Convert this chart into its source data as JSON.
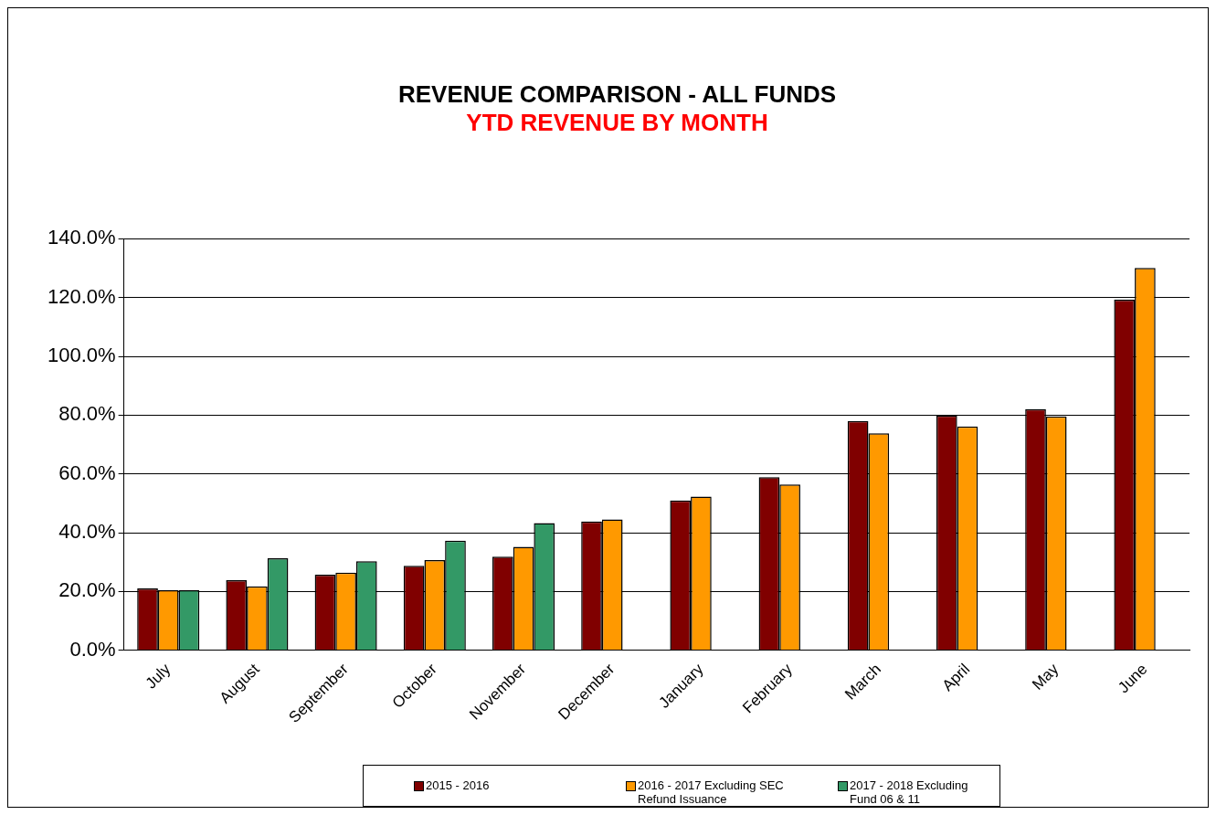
{
  "chart_data": {
    "type": "bar",
    "title": "REVENUE COMPARISON - ALL FUNDS",
    "subtitle": "YTD REVENUE BY MONTH",
    "categories": [
      "July",
      "August",
      "September",
      "October",
      "November",
      "December",
      "January",
      "February",
      "March",
      "April",
      "May",
      "June"
    ],
    "series": [
      {
        "name": "2015 - 2016",
        "color": "#800000",
        "values": [
          21.1,
          23.9,
          25.7,
          28.8,
          31.9,
          43.8,
          51.0,
          58.9,
          78.0,
          79.9,
          82.1,
          119.3
        ]
      },
      {
        "name": "2016 - 2017 Excluding SEC Refund Issuance",
        "color": "#ff9900",
        "values": [
          20.5,
          21.8,
          26.4,
          30.7,
          35.2,
          44.5,
          52.3,
          56.4,
          73.8,
          76.2,
          79.6,
          130.1
        ]
      },
      {
        "name": "2017 - 2018 Excluding Fund 06 & 11",
        "color": "#339966",
        "values": [
          20.5,
          31.3,
          30.3,
          37.3,
          43.3,
          null,
          null,
          null,
          null,
          null,
          null,
          null
        ]
      }
    ],
    "ylim": [
      0,
      140
    ],
    "yticks": [
      {
        "value": 0,
        "label": "0.0%"
      },
      {
        "value": 20,
        "label": "20.0%"
      },
      {
        "value": 40,
        "label": "40.0%"
      },
      {
        "value": 60,
        "label": "60.0%"
      },
      {
        "value": 80,
        "label": "80.0%"
      },
      {
        "value": 100,
        "label": "100.0%"
      },
      {
        "value": 120,
        "label": "120.0%"
      },
      {
        "value": 140,
        "label": "140.0%"
      }
    ],
    "grid": "y",
    "legend": "bottom"
  }
}
